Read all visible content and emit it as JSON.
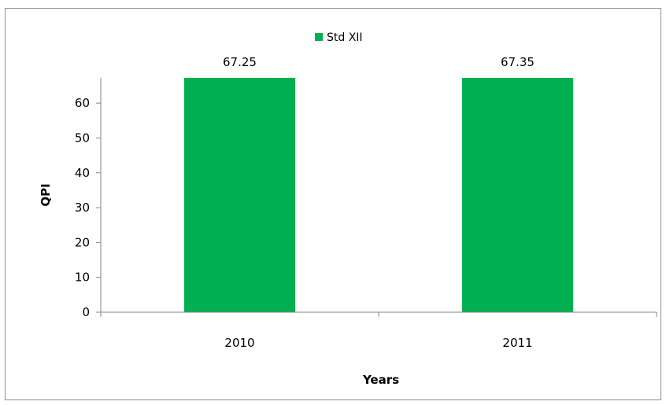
{
  "chart_data": {
    "type": "bar",
    "categories": [
      "2010",
      "2011"
    ],
    "series": [
      {
        "name": "Std XII",
        "values": [
          67.25,
          67.35
        ],
        "color": "#00b050"
      }
    ],
    "data_labels": [
      "67.25",
      "67.35"
    ],
    "xlabel": "Years",
    "ylabel": "QPI",
    "ylim": [
      0,
      67.25
    ],
    "yticks": [
      0,
      10,
      20,
      30,
      40,
      50,
      60
    ],
    "grid": false,
    "legend_position": "top"
  }
}
